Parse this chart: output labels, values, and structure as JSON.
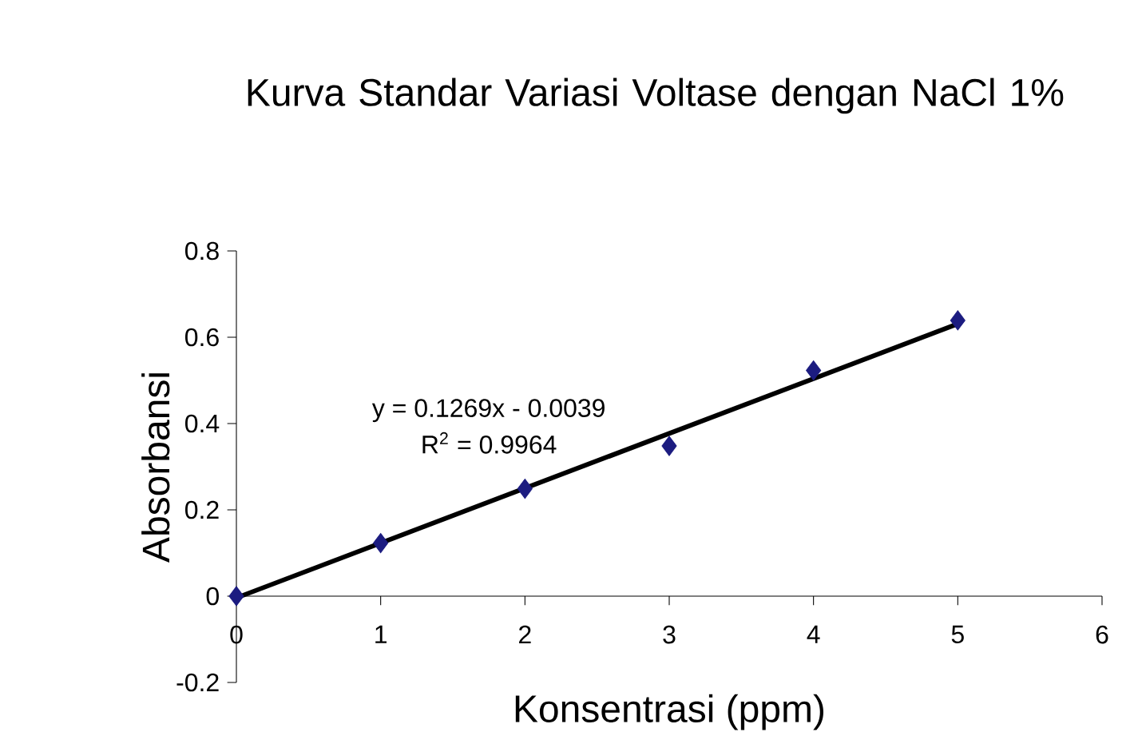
{
  "chart_data": {
    "type": "scatter",
    "title": "Kurva Standar Variasi Voltase dengan NaCl 1%",
    "xlabel": "Konsentrasi (ppm)",
    "ylabel": "Absorbansi",
    "annotations": [
      "y = 0.1269x - 0.0039",
      "R$^{2}$ = 0.9964"
    ],
    "xlim": [
      0,
      6
    ],
    "ylim": [
      -0.2,
      0.8
    ],
    "xticks": [
      0,
      1,
      2,
      3,
      4,
      5,
      6
    ],
    "yticks": [
      -0.2,
      0,
      0.2,
      0.4,
      0.6,
      0.8
    ],
    "series": [
      {
        "color": "#1c1c80",
        "marker": "diamond",
        "x": [
          0,
          1,
          2,
          3,
          4,
          5
        ],
        "values": [
          0,
          0.123,
          0.249,
          0.348,
          0.523,
          0.639
        ]
      },
      {
        "type": "line",
        "color": "#000000",
        "marker": "none",
        "line_style": "solid",
        "x": [
          0,
          5
        ],
        "values": [
          -0.004,
          0.631
        ]
      }
    ]
  }
}
